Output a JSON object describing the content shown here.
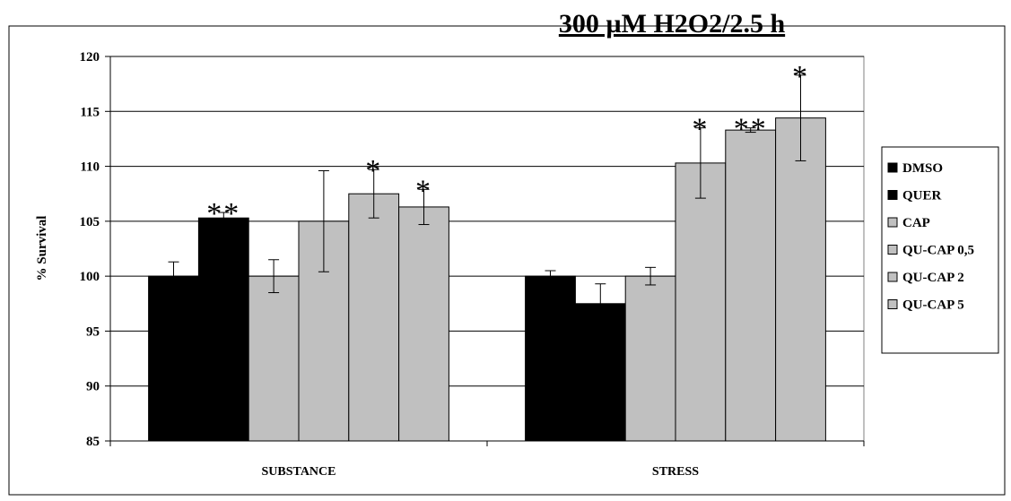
{
  "chart_data": {
    "type": "bar",
    "title": "300 µM H2O2/2.5 h",
    "xlabel": "",
    "ylabel": "% Survival",
    "ylim": [
      85,
      120
    ],
    "yticks": [
      85,
      90,
      95,
      100,
      105,
      110,
      115,
      120
    ],
    "grid": true,
    "legend_position": "right",
    "categories": [
      "SUBSTANCE",
      "STRESS"
    ],
    "series": [
      {
        "name": "DMSO",
        "color": "#000000",
        "values": [
          100,
          100
        ],
        "errors": [
          1.3,
          0.5
        ],
        "significance": [
          "",
          ""
        ]
      },
      {
        "name": "QUER",
        "color": "#000000",
        "values": [
          105.3,
          97.5
        ],
        "errors": [
          0.5,
          1.8
        ],
        "significance": [
          "**",
          ""
        ]
      },
      {
        "name": "CAP",
        "color": "#c0c0c0",
        "values": [
          100,
          100
        ],
        "errors": [
          1.5,
          0.8
        ],
        "significance": [
          "",
          ""
        ]
      },
      {
        "name": "QU-CAP 0,5",
        "color": "#c0c0c0",
        "values": [
          105,
          110.3
        ],
        "errors": [
          4.6,
          3.2
        ],
        "significance": [
          "",
          "*"
        ]
      },
      {
        "name": "QU-CAP 2",
        "color": "#c0c0c0",
        "values": [
          107.5,
          113.3
        ],
        "errors": [
          2.2,
          0.2
        ],
        "significance": [
          "*",
          "**"
        ]
      },
      {
        "name": "QU-CAP 5",
        "color": "#c0c0c0",
        "values": [
          106.3,
          114.4
        ],
        "errors": [
          1.6,
          3.9
        ],
        "significance": [
          "*",
          "*"
        ]
      }
    ]
  }
}
